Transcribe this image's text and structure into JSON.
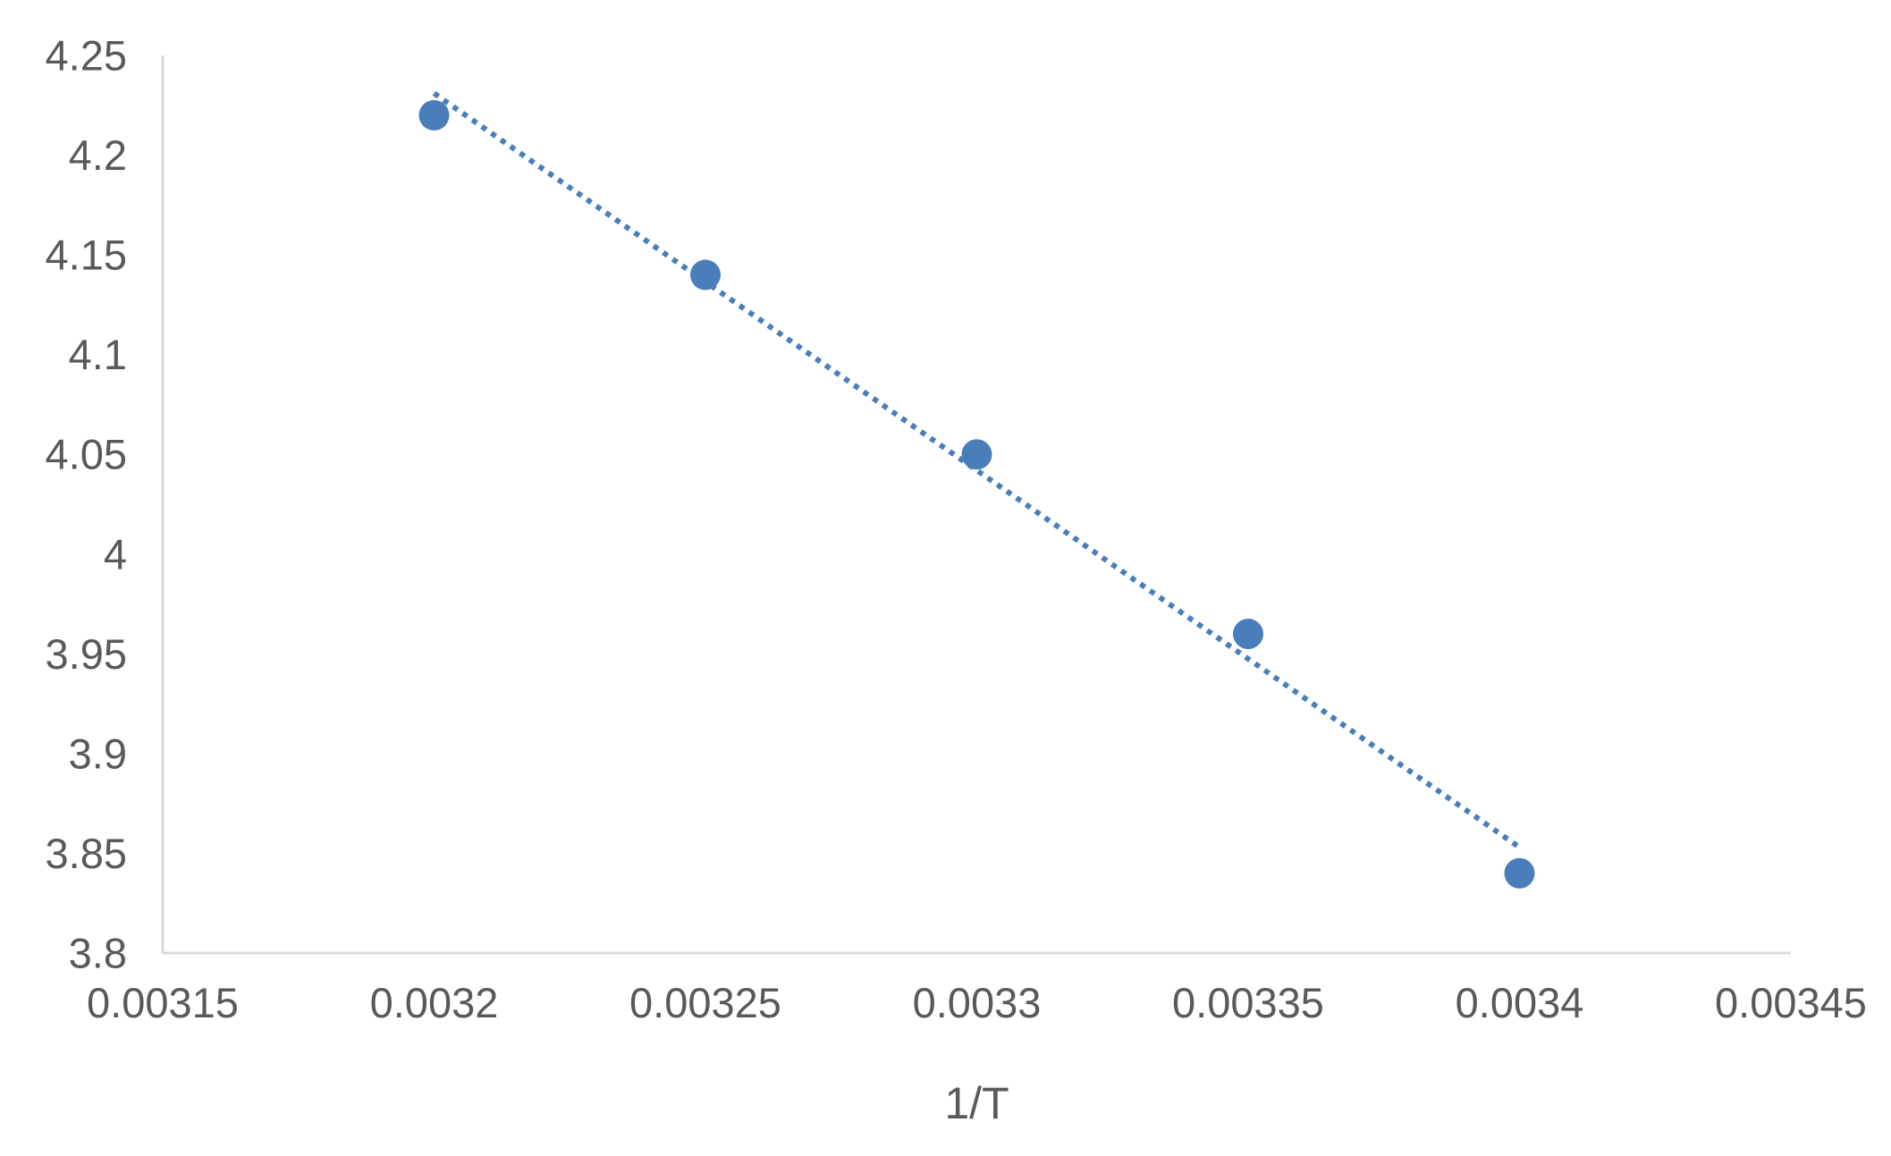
{
  "chart_data": {
    "type": "scatter",
    "title": "",
    "xlabel": "1/T",
    "ylabel": "",
    "xlim": [
      0.00315,
      0.00345
    ],
    "ylim": [
      3.8,
      4.25
    ],
    "x_ticks": [
      0.00315,
      0.0032,
      0.00325,
      0.0033,
      0.00335,
      0.0034,
      0.00345
    ],
    "y_ticks": [
      3.8,
      3.85,
      3.9,
      3.95,
      4.0,
      4.05,
      4.1,
      4.15,
      4.2,
      4.25
    ],
    "x_tick_labels": [
      "0.00315",
      "0.0032",
      "0.00325",
      "0.0033",
      "0.00335",
      "0.0034",
      "0.00345"
    ],
    "y_tick_labels": [
      "3.8",
      "3.85",
      "3.9",
      "3.95",
      "4",
      "4.05",
      "4.1",
      "4.15",
      "4.2",
      "4.25"
    ],
    "grid": false,
    "legend": "none",
    "series": [
      {
        "x": [
          0.0032,
          0.00325,
          0.0033,
          0.00335,
          0.0034
        ],
        "y": [
          4.22,
          4.14,
          4.05,
          3.96,
          3.84
        ],
        "color": "#4a7ebb"
      }
    ],
    "trendline": {
      "type": "linear",
      "style": "dotted",
      "color": "#4a7ebb",
      "x": [
        0.0032,
        0.0034
      ],
      "y": [
        4.231,
        3.853
      ]
    },
    "axis_color": "#d9d9d9",
    "tick_label_color": "#595959"
  }
}
